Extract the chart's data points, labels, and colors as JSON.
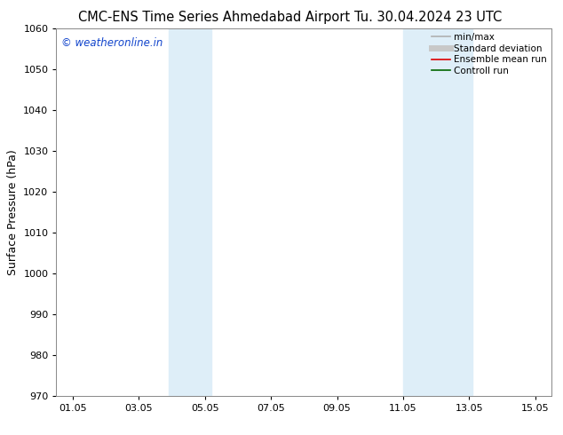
{
  "title_left": "CMC-ENS Time Series Ahmedabad Airport",
  "title_right": "Tu. 30.04.2024 23 UTC",
  "ylabel": "Surface Pressure (hPa)",
  "ylim": [
    970,
    1060
  ],
  "yticks": [
    970,
    980,
    990,
    1000,
    1010,
    1020,
    1030,
    1040,
    1050,
    1060
  ],
  "xtick_labels": [
    "01.05",
    "03.05",
    "05.05",
    "07.05",
    "09.05",
    "11.05",
    "13.05",
    "15.05"
  ],
  "xtick_positions": [
    1,
    3,
    5,
    7,
    9,
    11,
    13,
    15
  ],
  "xlim": [
    0.5,
    15.5
  ],
  "shaded_bands": [
    {
      "x_start": 3.9,
      "x_end": 5.2
    },
    {
      "x_start": 11.0,
      "x_end": 13.1
    }
  ],
  "band_color": "#deeef8",
  "watermark_text": "© weatheronline.in",
  "watermark_color": "#1144cc",
  "legend_entries": [
    {
      "label": "min/max",
      "color": "#b0b0b0",
      "lw": 1.2
    },
    {
      "label": "Standard deviation",
      "color": "#c8c8c8",
      "lw": 5
    },
    {
      "label": "Ensemble mean run",
      "color": "#dd0000",
      "lw": 1.2
    },
    {
      "label": "Controll run",
      "color": "#006600",
      "lw": 1.2
    }
  ],
  "bg_color": "#ffffff",
  "spine_color": "#888888",
  "title_fontsize": 10.5,
  "ylabel_fontsize": 9,
  "tick_fontsize": 8,
  "legend_fontsize": 7.5,
  "watermark_fontsize": 8.5
}
